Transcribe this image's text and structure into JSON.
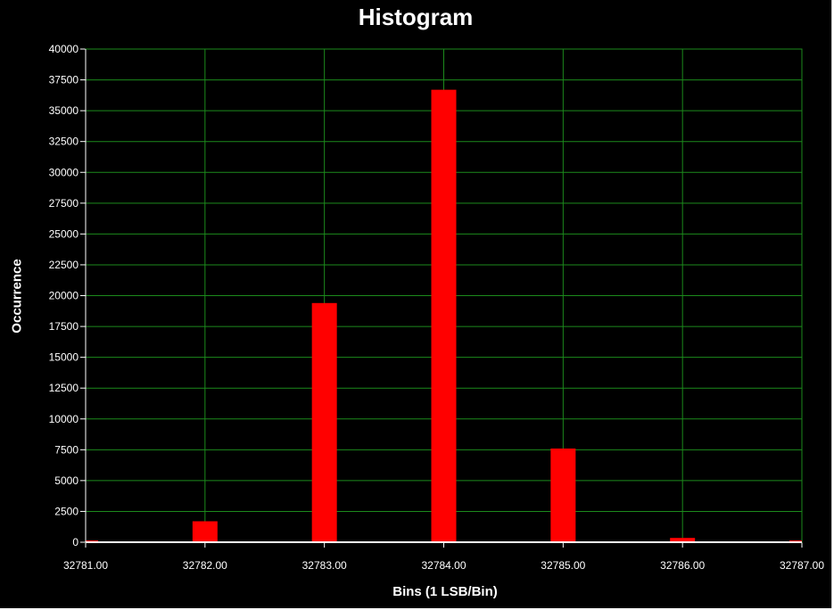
{
  "chart_data": {
    "type": "bar",
    "title": "Histogram",
    "xlabel": "Bins (1 LSB/Bin)",
    "ylabel": "Occurrence",
    "x": [
      32781,
      32782,
      32783,
      32784,
      32785,
      32786,
      32787
    ],
    "values": [
      60,
      1700,
      19400,
      36700,
      7600,
      350,
      60
    ],
    "xlim": [
      32781,
      32787
    ],
    "ylim": [
      0,
      40000
    ],
    "xticks": [
      "32781.00",
      "32782.00",
      "32783.00",
      "32784.00",
      "32785.00",
      "32786.00",
      "32787.00"
    ],
    "yticks": [
      "0",
      "2500",
      "5000",
      "7500",
      "10000",
      "12500",
      "15000",
      "17500",
      "20000",
      "22500",
      "25000",
      "27500",
      "30000",
      "32500",
      "35000",
      "37500",
      "40000"
    ],
    "grid": true,
    "colors": {
      "bar": "#ff0000",
      "grid": "#1c8a1c",
      "background": "#000000",
      "text": "#ffffff"
    }
  }
}
